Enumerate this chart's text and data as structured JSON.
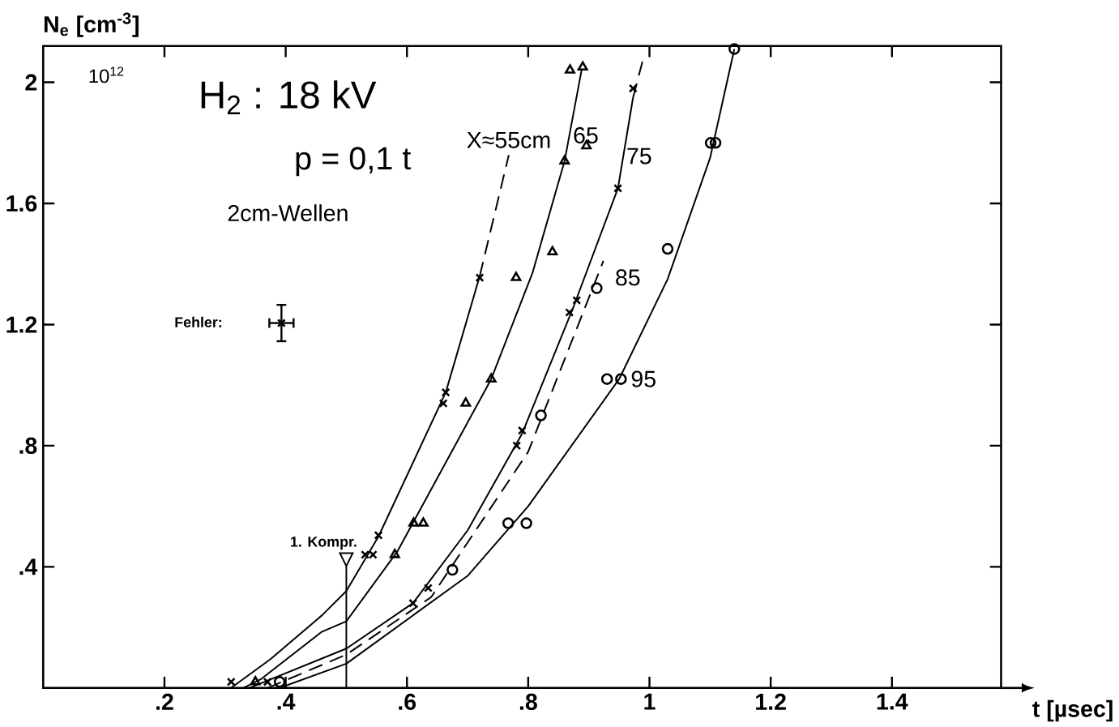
{
  "chart_data": {
    "type": "line",
    "xlabel": "t [µsec]",
    "ylabel": "N$_{e}$ [cm$^{-3}$]",
    "xlim": [
      0,
      1.58
    ],
    "ylim": [
      0,
      2.12
    ],
    "xticks": [
      {
        "value": 0.2,
        "label": ".2"
      },
      {
        "value": 0.4,
        "label": ".4"
      },
      {
        "value": 0.6,
        "label": ".6"
      },
      {
        "value": 0.8,
        "label": ".8"
      },
      {
        "value": 1,
        "label": "1"
      },
      {
        "value": 1.2,
        "label": "1.2"
      },
      {
        "value": 1.4,
        "label": "1.4"
      }
    ],
    "yticks": [
      {
        "value": 0.4,
        "label": ".4"
      },
      {
        "value": 0.8,
        "label": ".8"
      },
      {
        "value": 1.2,
        "label": "1.2"
      },
      {
        "value": 1.6,
        "label": "1.6"
      },
      {
        "value": 2,
        "label": "2"
      }
    ],
    "series": [
      {
        "line_style": "solid",
        "color": "#000000",
        "x": [
          0.31,
          0.375,
          0.46,
          0.5,
          0.553,
          0.664,
          0.72
        ],
        "values": [
          0.0,
          0.095,
          0.24,
          0.32,
          0.5,
          0.976,
          1.36
        ]
      },
      {
        "name": "X≈55cm",
        "line_style": "dashed",
        "color": "#000000",
        "x": [
          0.72,
          0.768
        ],
        "values": [
          1.36,
          1.76
        ]
      },
      {
        "type": "scatter",
        "marker": "cross",
        "color": "#000000",
        "x": [
          0.31,
          0.531,
          0.544,
          0.553,
          0.66,
          0.664,
          0.72
        ],
        "values": [
          0.02,
          0.44,
          0.44,
          0.504,
          0.94,
          0.976,
          1.355
        ]
      },
      {
        "name": "65",
        "line_style": "solid",
        "color": "#000000",
        "x": [
          0.33,
          0.36,
          0.46,
          0.5,
          0.584,
          0.739,
          0.807,
          0.86,
          0.888
        ],
        "values": [
          0.0,
          0.03,
          0.186,
          0.22,
          0.45,
          1.02,
          1.37,
          1.74,
          2.04
        ]
      },
      {
        "type": "scatter",
        "marker": "triangle",
        "color": "#000000",
        "x": [
          0.35,
          0.58,
          0.611,
          0.627,
          0.697,
          0.739,
          0.78,
          0.84,
          0.86,
          0.869,
          0.89,
          0.896
        ],
        "values": [
          0.02,
          0.44,
          0.544,
          0.544,
          0.94,
          1.02,
          1.355,
          1.44,
          1.74,
          2.04,
          2.05,
          1.79
        ]
      },
      {
        "name": "75",
        "line_style": "solid",
        "color": "#000000",
        "x": [
          0.34,
          0.5,
          0.61,
          0.7,
          0.79,
          0.875,
          0.948,
          0.973
        ],
        "values": [
          0.0,
          0.13,
          0.28,
          0.52,
          0.84,
          1.26,
          1.65,
          1.95
        ]
      },
      {
        "line_style": "dashed",
        "color": "#000000",
        "x": [
          0.973,
          0.99
        ],
        "values": [
          1.95,
          2.08
        ]
      },
      {
        "type": "scatter",
        "marker": "cross",
        "color": "#000000",
        "x": [
          0.37,
          0.61,
          0.635,
          0.781,
          0.79,
          0.868,
          0.88,
          0.948,
          0.973
        ],
        "values": [
          0.02,
          0.28,
          0.33,
          0.8,
          0.85,
          1.24,
          1.28,
          1.65,
          1.98
        ]
      },
      {
        "name": "85",
        "line_style": "dashed",
        "color": "#000000",
        "x": [
          0.37,
          0.5,
          0.64,
          0.8,
          0.924
        ],
        "values": [
          0.0,
          0.11,
          0.3,
          0.78,
          1.41
        ]
      },
      {
        "type": "scatter",
        "marker": "circle",
        "color": "#000000",
        "x": [
          0.675,
          0.821,
          0.913
        ],
        "values": [
          0.39,
          0.9,
          1.32
        ]
      },
      {
        "name": "95",
        "line_style": "solid",
        "color": "#000000",
        "x": [
          0.39,
          0.5,
          0.7,
          0.8,
          0.95,
          1.03,
          1.1,
          1.14
        ],
        "values": [
          0.0,
          0.08,
          0.37,
          0.6,
          1.02,
          1.35,
          1.75,
          2.11
        ]
      },
      {
        "type": "scatter",
        "marker": "circle",
        "color": "#000000",
        "x": [
          0.39,
          0.767,
          0.797,
          0.93,
          0.953,
          1.03,
          1.101,
          1.109,
          1.14
        ],
        "values": [
          0.02,
          0.544,
          0.544,
          1.02,
          1.02,
          1.45,
          1.8,
          1.8,
          2.11
        ]
      },
      {
        "type": "scatter",
        "marker": "cross",
        "color": "#000000",
        "x": [
          0.393
        ],
        "values": [
          1.205
        ],
        "errors": [
          0.06
        ],
        "xerrors": [
          0.02
        ]
      }
    ],
    "ref_lines": [
      {
        "axis": "x",
        "value": 0.5,
        "label": "1. Kompr."
      }
    ],
    "annotations": [
      "10$^{12}$",
      "H$_{2}$ : 18 kV",
      "p = 0,1 t",
      "2cm-Wellen",
      "Fehler:"
    ]
  }
}
